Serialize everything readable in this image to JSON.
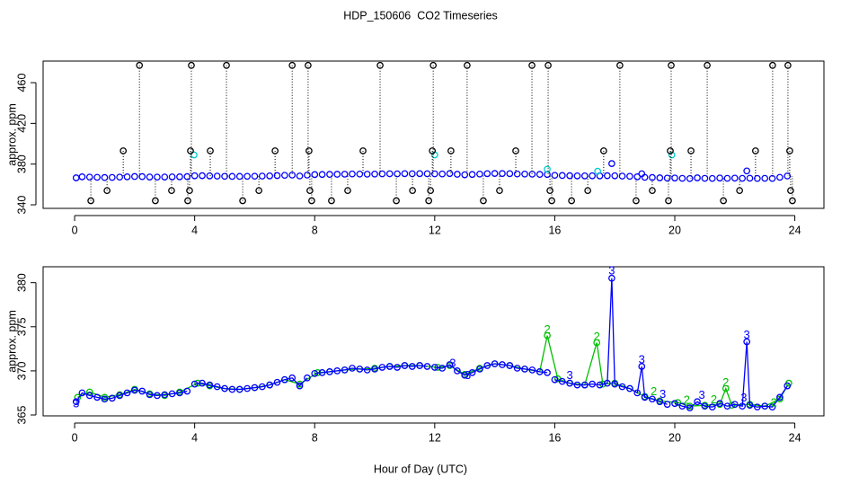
{
  "chart_data": [
    {
      "type": "scatter",
      "title": "HDP_150606  CO2 Timeseries",
      "y_label": "approx. ppm",
      "xlim": [
        -1.05,
        24.97
      ],
      "xticks": [
        0,
        4,
        8,
        12,
        16,
        20,
        24
      ],
      "ylim": [
        336.5,
        481.2
      ],
      "yticks": [
        340,
        380,
        420,
        460
      ],
      "series": [
        {
          "color": "#0000ff",
          "lines": false,
          "x": [
            0.05,
            0.25,
            0.5,
            0.75,
            1,
            1.25,
            1.5,
            1.75,
            2,
            2.25,
            2.5,
            2.75,
            3,
            3.25,
            3.5,
            3.75,
            4,
            4.25,
            4.5,
            4.75,
            5,
            5.25,
            5.5,
            5.75,
            6,
            6.25,
            6.5,
            6.75,
            7,
            7.25,
            7.5,
            7.75,
            8,
            8.25,
            8.5,
            8.75,
            9,
            9.25,
            9.5,
            9.75,
            10,
            10.25,
            10.5,
            10.75,
            11,
            11.25,
            11.5,
            11.75,
            12,
            12.25,
            12.5,
            12.75,
            13,
            13.25,
            13.5,
            13.75,
            14,
            14.25,
            14.5,
            14.75,
            15,
            15.25,
            15.5,
            15.75,
            16,
            16.25,
            16.5,
            16.75,
            17,
            17.25,
            17.5,
            17.75,
            17.9,
            18,
            18.25,
            18.5,
            18.75,
            18.9,
            19,
            19.25,
            19.5,
            19.75,
            20,
            20.25,
            20.5,
            20.75,
            21,
            21.25,
            21.5,
            21.75,
            22,
            22.25,
            22.4,
            22.5,
            22.75,
            23,
            23.25,
            23.5,
            23.75
          ],
          "values": [
            366.5,
            367.5,
            367.2,
            367.0,
            366.8,
            366.9,
            367.2,
            367.5,
            367.8,
            367.7,
            367.3,
            367.2,
            367.3,
            367.4,
            367.5,
            367.7,
            368.5,
            368.6,
            368.4,
            368.2,
            368.0,
            367.9,
            367.9,
            368.0,
            368.1,
            368.2,
            368.4,
            368.7,
            369.0,
            369.2,
            368.3,
            369.2,
            369.7,
            369.8,
            369.9,
            370.0,
            370.1,
            370.3,
            370.2,
            370.1,
            370.2,
            370.4,
            370.5,
            370.4,
            370.6,
            370.5,
            370.6,
            370.5,
            370.4,
            370.3,
            370.7,
            370.0,
            369.5,
            369.8,
            370.2,
            370.6,
            370.8,
            370.7,
            370.6,
            370.3,
            370.2,
            370.1,
            369.9,
            369.8,
            369.0,
            368.8,
            368.6,
            368.4,
            368.4,
            368.5,
            368.4,
            368.6,
            380.5,
            368.5,
            368.2,
            368.0,
            367.5,
            370.5,
            367.0,
            366.8,
            366.5,
            366.2,
            366.3,
            366.0,
            365.8,
            366.5,
            366.0,
            365.9,
            366.3,
            366.0,
            366.2,
            366.0,
            373.3,
            366.1,
            365.9,
            366.0,
            365.9,
            367.0,
            368.3
          ]
        },
        {
          "color": "#00cdcd",
          "lines": false,
          "x": [
            3.98,
            12.0,
            15.75,
            17.43,
            19.9
          ],
          "values": [
            389,
            389,
            375,
            373,
            389
          ]
        },
        {
          "color": "#000000",
          "lines": false,
          "drop_lines": true,
          "x": [
            0.54,
            1.08,
            1.62,
            2.16,
            2.69,
            3.23,
            3.77,
            3.83,
            3.86,
            3.89,
            4.52,
            5.06,
            5.6,
            6.14,
            6.68,
            7.25,
            7.78,
            7.81,
            7.84,
            7.9,
            8.56,
            9.1,
            9.61,
            10.18,
            10.72,
            11.26,
            11.8,
            11.86,
            11.92,
            11.95,
            12.54,
            13.08,
            13.62,
            14.16,
            14.7,
            15.24,
            15.78,
            15.84,
            15.9,
            16.56,
            17.1,
            17.63,
            18.17,
            18.71,
            19.25,
            19.79,
            19.85,
            19.88,
            20.54,
            21.08,
            21.62,
            22.16,
            22.69,
            23.26,
            23.77,
            23.83,
            23.86,
            23.92
          ],
          "values": [
            344,
            354,
            393,
            477,
            344,
            354,
            344,
            354,
            393,
            477,
            393,
            477,
            344,
            354,
            393,
            477,
            477,
            393,
            354,
            344,
            344,
            354,
            393,
            477,
            344,
            354,
            344,
            354,
            393,
            477,
            393,
            477,
            344,
            354,
            393,
            477,
            477,
            354,
            344,
            344,
            354,
            393,
            477,
            344,
            354,
            344,
            393,
            477,
            393,
            477,
            344,
            354,
            393,
            477,
            477,
            393,
            354,
            344
          ]
        }
      ]
    },
    {
      "type": "line",
      "y_label": "approx. ppm",
      "x_label": "Hour of Day (UTC)",
      "xlim": [
        -1.05,
        24.97
      ],
      "xticks": [
        0,
        4,
        8,
        12,
        16,
        20,
        24
      ],
      "ylim": [
        364.9,
        381.8
      ],
      "yticks": [
        365,
        370,
        375,
        380
      ],
      "series": [
        {
          "color": "#00c000",
          "lines": true,
          "x": [
            0.1,
            0.5,
            1,
            1.5,
            2,
            2.5,
            3,
            3.5,
            4.1,
            4.5,
            5,
            5.5,
            6,
            6.5,
            7,
            7.5,
            8.1,
            8.5,
            9,
            9.5,
            10,
            10.5,
            11,
            11.5,
            12.1,
            12.5,
            13,
            13.5,
            14,
            14.5,
            15,
            15.5,
            15.75,
            16.1,
            16.5,
            17,
            17.4,
            17.6,
            18,
            18.5,
            19,
            19.5,
            20.1,
            20.5,
            21,
            21.5,
            21.7,
            21.9,
            22.5,
            23,
            23.5,
            23.8
          ],
          "values": [
            367.0,
            367.6,
            367.0,
            367.3,
            367.9,
            367.4,
            367.2,
            367.6,
            368.6,
            368.3,
            368.0,
            367.9,
            368.1,
            368.4,
            369.0,
            368.5,
            369.8,
            369.9,
            370.1,
            370.2,
            370.3,
            370.5,
            370.6,
            370.6,
            370.4,
            370.6,
            369.6,
            370.3,
            370.8,
            370.6,
            370.2,
            369.9,
            374.0,
            369.1,
            368.6,
            368.4,
            373.2,
            368.5,
            368.6,
            368.0,
            367.1,
            366.6,
            366.4,
            366.0,
            366.1,
            366.2,
            368.0,
            366.1,
            366.2,
            366.0,
            366.8,
            368.6
          ]
        },
        {
          "color": "#0000ff",
          "lines": true,
          "x": [
            0.05,
            0.25,
            0.5,
            0.75,
            1,
            1.25,
            1.5,
            1.75,
            2,
            2.25,
            2.5,
            2.75,
            3,
            3.25,
            3.5,
            3.75,
            3.9,
            4,
            4.25,
            4.5,
            4.75,
            5,
            5.25,
            5.5,
            5.75,
            6,
            6.25,
            6.5,
            6.75,
            7,
            7.25,
            7.5,
            7.75,
            7.9,
            8,
            8.25,
            8.5,
            8.75,
            9,
            9.25,
            9.5,
            9.75,
            10,
            10.25,
            10.5,
            10.75,
            11,
            11.25,
            11.5,
            11.75,
            11.9,
            12,
            12.25,
            12.5,
            12.75,
            13,
            13.25,
            13.5,
            13.75,
            14,
            14.25,
            14.5,
            14.75,
            15,
            15.25,
            15.5,
            15.75,
            15.85,
            16,
            16.25,
            16.5,
            16.75,
            17,
            17.25,
            17.5,
            17.75,
            17.9,
            18,
            18.25,
            18.5,
            18.75,
            18.9,
            19,
            19.25,
            19.5,
            19.75,
            19.85,
            20,
            20.25,
            20.5,
            20.75,
            21,
            21.25,
            21.5,
            21.75,
            22,
            22.25,
            22.4,
            22.5,
            22.75,
            23,
            23.25,
            23.5,
            23.75
          ],
          "values": [
            366.5,
            367.5,
            367.2,
            367.0,
            366.8,
            366.9,
            367.2,
            367.5,
            367.8,
            367.7,
            367.3,
            367.2,
            367.3,
            367.4,
            367.5,
            367.7,
            null,
            368.5,
            368.6,
            368.4,
            368.2,
            368.0,
            367.9,
            367.9,
            368.0,
            368.1,
            368.2,
            368.4,
            368.7,
            369.0,
            369.2,
            368.3,
            369.2,
            null,
            369.7,
            369.8,
            369.9,
            370.0,
            370.1,
            370.3,
            370.2,
            370.1,
            370.2,
            370.4,
            370.5,
            370.4,
            370.6,
            370.5,
            370.6,
            370.5,
            null,
            370.4,
            370.3,
            370.7,
            370.0,
            369.5,
            369.8,
            370.2,
            370.6,
            370.8,
            370.7,
            370.6,
            370.3,
            370.2,
            370.1,
            369.9,
            369.8,
            null,
            369.0,
            368.8,
            368.6,
            368.4,
            368.4,
            368.5,
            368.4,
            368.6,
            380.5,
            368.5,
            368.2,
            368.0,
            367.5,
            370.5,
            367.0,
            366.8,
            366.5,
            366.2,
            null,
            366.3,
            366.0,
            365.8,
            366.5,
            366.0,
            365.9,
            366.3,
            366.0,
            366.2,
            366.0,
            373.3,
            366.1,
            365.9,
            366.0,
            365.9,
            367.0,
            368.3
          ]
        }
      ],
      "annotations": [
        {
          "text": "3",
          "x": 17.9,
          "y": 381.3,
          "color": "#0000ff"
        },
        {
          "text": "3",
          "x": 18.9,
          "y": 371.2,
          "color": "#0000ff"
        },
        {
          "text": "3",
          "x": 22.4,
          "y": 374.0,
          "color": "#0000ff"
        },
        {
          "text": "2",
          "x": 15.75,
          "y": 374.6,
          "color": "#00c000"
        },
        {
          "text": "2",
          "x": 17.4,
          "y": 373.8,
          "color": "#00c000"
        },
        {
          "text": "2",
          "x": 21.7,
          "y": 368.6,
          "color": "#00c000"
        },
        {
          "text": "3",
          "x": 0.05,
          "y": 366.2,
          "color": "#0000ff"
        },
        {
          "text": "3",
          "x": 12.6,
          "y": 370.8,
          "color": "#0000ff"
        },
        {
          "text": "3",
          "x": 13.1,
          "y": 369.4,
          "color": "#0000ff"
        },
        {
          "text": "3",
          "x": 16.5,
          "y": 369.4,
          "color": "#0000ff"
        },
        {
          "text": "3",
          "x": 19.6,
          "y": 367.3,
          "color": "#0000ff"
        },
        {
          "text": "2",
          "x": 19.3,
          "y": 367.6,
          "color": "#00c000"
        },
        {
          "text": "2",
          "x": 20.4,
          "y": 366.6,
          "color": "#00c000"
        },
        {
          "text": "3",
          "x": 20.9,
          "y": 367.2,
          "color": "#0000ff"
        },
        {
          "text": "2",
          "x": 21.3,
          "y": 366.7,
          "color": "#00c000"
        },
        {
          "text": "3",
          "x": 22.3,
          "y": 366.9,
          "color": "#0000ff"
        },
        {
          "text": "2",
          "x": 23.3,
          "y": 366.3,
          "color": "#00c000"
        }
      ]
    }
  ]
}
